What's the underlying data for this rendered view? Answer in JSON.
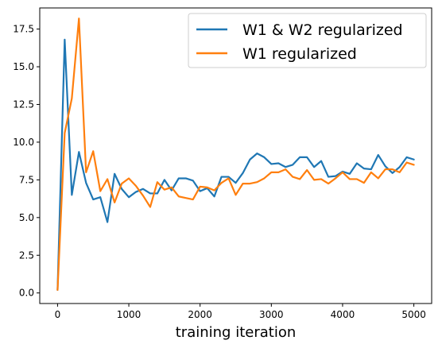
{
  "chart_data": {
    "type": "line",
    "xlabel": "training iteration",
    "ylabel": "",
    "xlim": [
      -250,
      5250
    ],
    "ylim": [
      -0.7,
      18.9
    ],
    "xticks": [
      0,
      1000,
      2000,
      3000,
      4000,
      5000
    ],
    "yticks": [
      0.0,
      2.5,
      5.0,
      7.5,
      10.0,
      12.5,
      15.0,
      17.5
    ],
    "ytick_labels": [
      "0.0",
      "2.5",
      "5.0",
      "7.5",
      "10.0",
      "12.5",
      "15.0",
      "17.5"
    ],
    "xtick_labels": [
      "0",
      "1000",
      "2000",
      "3000",
      "4000",
      "5000"
    ],
    "grid": false,
    "legend_position": "top-right",
    "x": [
      0,
      100,
      200,
      300,
      400,
      500,
      600,
      700,
      800,
      900,
      1000,
      1100,
      1200,
      1300,
      1400,
      1500,
      1600,
      1700,
      1800,
      1900,
      2000,
      2100,
      2200,
      2300,
      2400,
      2500,
      2600,
      2700,
      2800,
      2900,
      3000,
      3100,
      3200,
      3300,
      3400,
      3500,
      3600,
      3700,
      3800,
      3900,
      4000,
      4100,
      4200,
      4300,
      4400,
      4500,
      4600,
      4700,
      4800,
      4900,
      5000
    ],
    "series": [
      {
        "name": "W1 & W2 regularized",
        "color": "#1f77b4",
        "values": [
          0.2,
          16.8,
          6.5,
          9.35,
          7.3,
          6.2,
          6.35,
          4.7,
          7.9,
          6.9,
          6.35,
          6.7,
          6.9,
          6.6,
          6.6,
          7.5,
          6.8,
          7.6,
          7.6,
          7.45,
          6.75,
          6.95,
          6.4,
          7.7,
          7.7,
          7.3,
          7.95,
          8.85,
          9.25,
          9.0,
          8.55,
          8.6,
          8.35,
          8.5,
          9.0,
          9.0,
          8.35,
          8.75,
          7.7,
          7.75,
          8.05,
          7.9,
          8.6,
          8.25,
          8.2,
          9.15,
          8.4,
          7.95,
          8.35,
          9.0,
          8.85
        ]
      },
      {
        "name": "W1 regularized",
        "color": "#ff7f0e",
        "values": [
          0.2,
          10.6,
          12.9,
          18.2,
          8.0,
          9.4,
          6.75,
          7.55,
          6.0,
          7.25,
          7.6,
          7.1,
          6.45,
          5.7,
          7.35,
          6.85,
          7.0,
          6.4,
          6.3,
          6.2,
          7.05,
          7.0,
          6.8,
          7.3,
          7.6,
          6.5,
          7.25,
          7.25,
          7.35,
          7.6,
          8.0,
          8.0,
          8.2,
          7.7,
          7.55,
          8.15,
          7.5,
          7.55,
          7.25,
          7.6,
          8.0,
          7.55,
          7.55,
          7.3,
          8.0,
          7.6,
          8.2,
          8.2,
          8.0,
          8.65,
          8.5
        ]
      }
    ]
  }
}
